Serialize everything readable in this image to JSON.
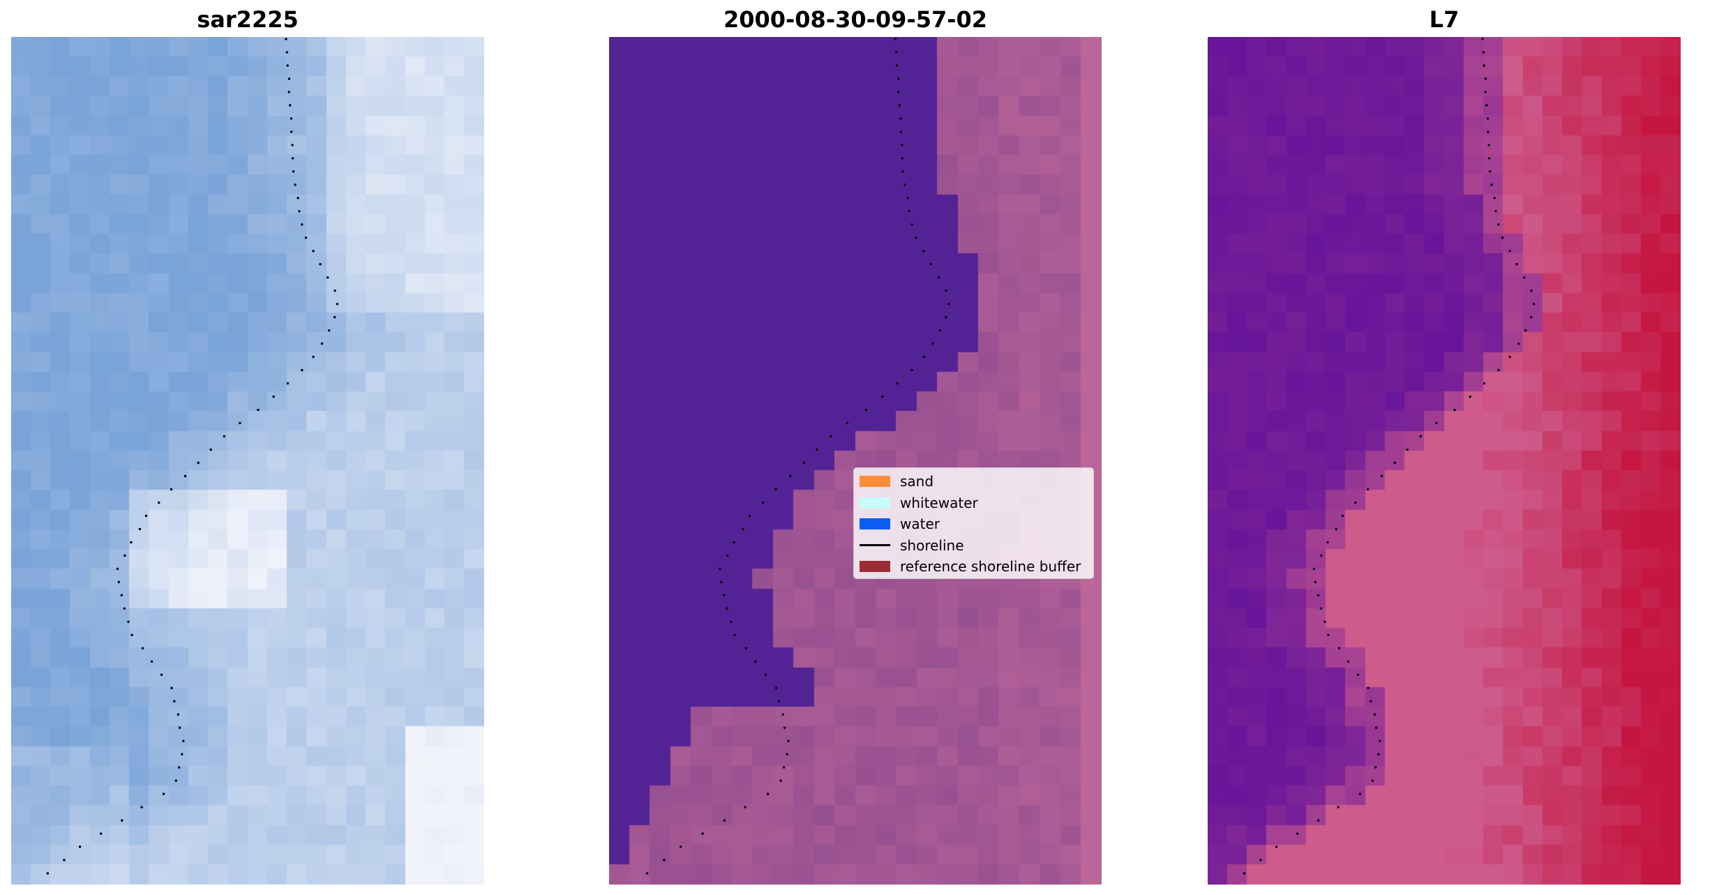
{
  "panels": [
    {
      "title": "sar2225",
      "image": "sar-rgb-image"
    },
    {
      "title": "2000-08-30-09-57-02",
      "image": "classified-image"
    },
    {
      "title": "L7",
      "image": "l7-false-color-image"
    }
  ],
  "legend": {
    "items": [
      {
        "label": "sand",
        "color": "#ff8c3a",
        "kind": "patch"
      },
      {
        "label": "whitewater",
        "color": "#c8fcfc",
        "kind": "patch"
      },
      {
        "label": "water",
        "color": "#0a5cf5",
        "kind": "patch"
      },
      {
        "label": "shoreline",
        "color": "#000000",
        "kind": "line"
      },
      {
        "label": "reference shoreline buffer",
        "color": "#9b2c35",
        "kind": "patch"
      }
    ]
  },
  "colors": {
    "sar_water": "#7aa3d8",
    "sar_bright": "#f2f4fb",
    "classified_water": "#532396",
    "classified_land": "#975091",
    "classified_edge": "#bb6699",
    "l7_water": "#62119a",
    "l7_land": "#cd5c8d",
    "l7_deep": "#c4123c",
    "shoreline_dots": "#000000"
  }
}
